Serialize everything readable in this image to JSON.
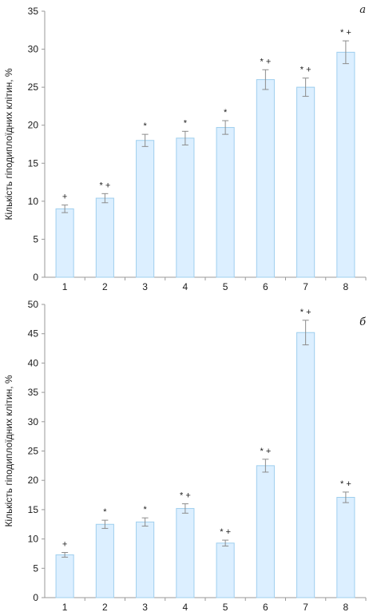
{
  "colors": {
    "bar_fill": "#dcefff",
    "bar_stroke": "#9fcfee",
    "error": "#8c8c8c",
    "axis": "#9a9a9a"
  },
  "chart_data": [
    {
      "type": "bar",
      "panel_label": "а",
      "ylabel": "Кількість гіподиплоїдних клітин, %",
      "ylim": [
        0,
        35
      ],
      "yticks": [
        0,
        5,
        10,
        15,
        20,
        25,
        30,
        35
      ],
      "categories": [
        "1",
        "2",
        "3",
        "4",
        "5",
        "6",
        "7",
        "8"
      ],
      "values": [
        9.0,
        10.4,
        18.0,
        18.3,
        19.7,
        26.0,
        25.0,
        29.6
      ],
      "errors": [
        0.5,
        0.6,
        0.8,
        0.9,
        0.9,
        1.3,
        1.2,
        1.5
      ],
      "annotations": [
        "+",
        "* +",
        "*",
        "*",
        "*",
        "* +",
        "* +",
        "* +"
      ],
      "grid": false,
      "legend": "none"
    },
    {
      "type": "bar",
      "panel_label": "б",
      "ylabel": "Кількість гіподиплоїдних клітин, %",
      "ylim": [
        0,
        50
      ],
      "yticks": [
        0,
        5,
        10,
        15,
        20,
        25,
        30,
        35,
        40,
        45,
        50
      ],
      "categories": [
        "1",
        "2",
        "3",
        "4",
        "5",
        "6",
        "7",
        "8"
      ],
      "values": [
        7.3,
        12.5,
        12.9,
        15.2,
        9.3,
        22.5,
        45.2,
        17.1
      ],
      "errors": [
        0.4,
        0.7,
        0.7,
        0.8,
        0.5,
        1.1,
        2.1,
        0.9
      ],
      "annotations": [
        "+",
        "*",
        "*",
        "* +",
        "* +",
        "* +",
        "* +",
        "* +"
      ],
      "grid": false,
      "legend": "none"
    }
  ]
}
